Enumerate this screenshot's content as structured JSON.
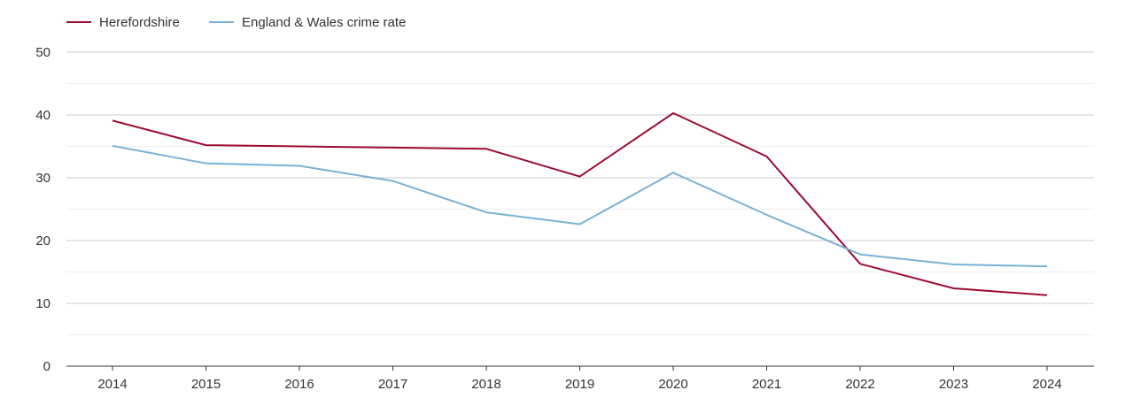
{
  "chart_data": {
    "type": "line",
    "title": "",
    "xlabel": "",
    "ylabel": "",
    "ylim": [
      0,
      50
    ],
    "yticks": [
      0,
      10,
      20,
      30,
      40,
      50
    ],
    "categories": [
      "2014",
      "2015",
      "2016",
      "2017",
      "2018",
      "2019",
      "2020",
      "2021",
      "2022",
      "2023",
      "2024"
    ],
    "legend_position": "top-left",
    "series": [
      {
        "name": "Herefordshire",
        "color": "#9b0b30",
        "values": [
          39.1,
          35.2,
          35.0,
          34.8,
          34.6,
          30.2,
          40.3,
          33.4,
          16.3,
          12.4,
          11.3
        ]
      },
      {
        "name": "England & Wales crime rate",
        "color": "#7ab1d6",
        "values": [
          35.1,
          32.3,
          31.9,
          29.5,
          24.5,
          22.6,
          30.8,
          24.1,
          17.8,
          16.2,
          15.9
        ]
      }
    ]
  }
}
